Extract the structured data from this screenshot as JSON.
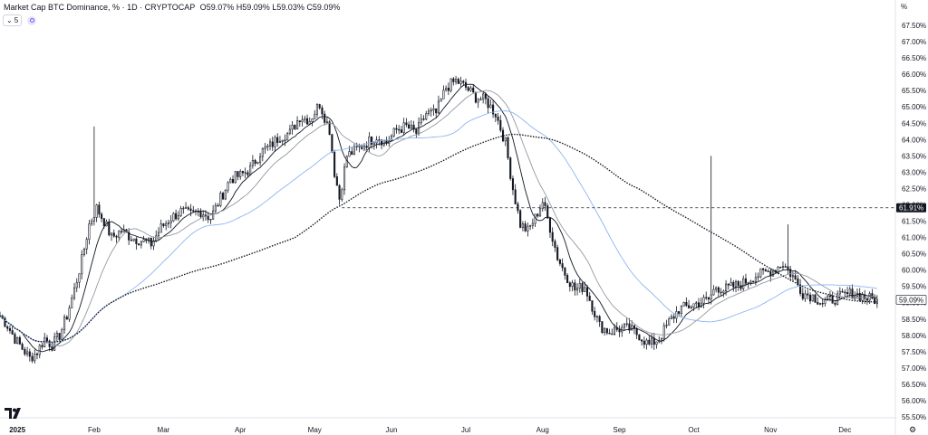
{
  "header": {
    "title": "Market Cap BTC Dominance, %",
    "interval": "1D",
    "source": "CRYPTOCAP",
    "open_label": "O",
    "open": "59.07%",
    "high_label": "H",
    "high": "59.09%",
    "low_label": "L",
    "low": "59.03%",
    "close_label": "C",
    "close": "59.09%"
  },
  "toolbar": {
    "collapse_label": "5"
  },
  "axis": {
    "unit": "%"
  },
  "colors": {
    "candle": "#131722",
    "ma_fast": "#131722",
    "ma_mid": "#9598a1",
    "ma_slow": "#8fb5f0",
    "ma_long": "#131722",
    "last_price_label_bg": "#ffffff",
    "level_label_bg": "#131722"
  },
  "chart_data": {
    "type": "candlestick",
    "title": "Market Cap BTC Dominance, %",
    "ylim": [
      55.5,
      68.0
    ],
    "y_ticks": [
      "55.50%",
      "56.00%",
      "56.50%",
      "57.00%",
      "57.50%",
      "58.00%",
      "58.50%",
      "59.00%",
      "59.50%",
      "60.00%",
      "60.50%",
      "61.00%",
      "61.50%",
      "62.00%",
      "62.50%",
      "63.00%",
      "63.50%",
      "64.00%",
      "64.50%",
      "65.00%",
      "65.50%",
      "66.00%",
      "66.50%",
      "67.00%",
      "67.50%"
    ],
    "x_ticks": [
      "2025",
      "Feb",
      "Mar",
      "Apr",
      "May",
      "Jun",
      "Jul",
      "Aug",
      "Sep",
      "Oct",
      "Nov",
      "Dec"
    ],
    "x_start": "2024-12-25",
    "x_end": "2025-12-21",
    "close_anchors": [
      [
        "2024-12-25",
        58.6
      ],
      [
        "2024-12-28",
        58.3
      ],
      [
        "2024-12-31",
        57.9
      ],
      [
        "2025-01-03",
        57.6
      ],
      [
        "2025-01-06",
        57.3
      ],
      [
        "2025-01-09",
        57.5
      ],
      [
        "2025-01-12",
        57.9
      ],
      [
        "2025-01-15",
        57.7
      ],
      [
        "2025-01-18",
        58.0
      ],
      [
        "2025-01-21",
        58.6
      ],
      [
        "2025-01-24",
        59.4
      ],
      [
        "2025-01-27",
        60.3
      ],
      [
        "2025-01-30",
        61.4
      ],
      [
        "2025-02-02",
        61.9
      ],
      [
        "2025-02-05",
        61.5
      ],
      [
        "2025-02-08",
        61.0
      ],
      [
        "2025-02-12",
        61.2
      ],
      [
        "2025-02-16",
        61.0
      ],
      [
        "2025-02-20",
        60.9
      ],
      [
        "2025-02-24",
        60.8
      ],
      [
        "2025-02-28",
        61.3
      ],
      [
        "2025-03-04",
        61.6
      ],
      [
        "2025-03-08",
        61.8
      ],
      [
        "2025-03-12",
        61.7
      ],
      [
        "2025-03-16",
        61.8
      ],
      [
        "2025-03-20",
        61.6
      ],
      [
        "2025-03-24",
        62.2
      ],
      [
        "2025-03-28",
        62.8
      ],
      [
        "2025-04-01",
        62.9
      ],
      [
        "2025-04-05",
        63.1
      ],
      [
        "2025-04-09",
        63.6
      ],
      [
        "2025-04-13",
        63.8
      ],
      [
        "2025-04-17",
        64.1
      ],
      [
        "2025-04-21",
        64.2
      ],
      [
        "2025-04-25",
        64.7
      ],
      [
        "2025-04-29",
        64.6
      ],
      [
        "2025-05-03",
        65.1
      ],
      [
        "2025-05-07",
        64.3
      ],
      [
        "2025-05-09",
        63.0
      ],
      [
        "2025-05-11",
        62.2
      ],
      [
        "2025-05-14",
        63.5
      ],
      [
        "2025-05-18",
        63.7
      ],
      [
        "2025-05-22",
        63.9
      ],
      [
        "2025-05-26",
        64.1
      ],
      [
        "2025-05-30",
        63.9
      ],
      [
        "2025-06-03",
        64.3
      ],
      [
        "2025-06-07",
        64.4
      ],
      [
        "2025-06-11",
        64.2
      ],
      [
        "2025-06-15",
        64.8
      ],
      [
        "2025-06-19",
        64.8
      ],
      [
        "2025-06-23",
        65.6
      ],
      [
        "2025-06-27",
        65.8
      ],
      [
        "2025-07-01",
        65.6
      ],
      [
        "2025-07-05",
        65.3
      ],
      [
        "2025-07-09",
        65.2
      ],
      [
        "2025-07-13",
        64.8
      ],
      [
        "2025-07-17",
        63.9
      ],
      [
        "2025-07-20",
        62.5
      ],
      [
        "2025-07-23",
        61.4
      ],
      [
        "2025-07-26",
        61.2
      ],
      [
        "2025-07-29",
        61.6
      ],
      [
        "2025-08-01",
        62.1
      ],
      [
        "2025-08-04",
        61.3
      ],
      [
        "2025-08-07",
        60.4
      ],
      [
        "2025-08-10",
        59.9
      ],
      [
        "2025-08-14",
        59.4
      ],
      [
        "2025-08-18",
        59.5
      ],
      [
        "2025-08-21",
        58.9
      ],
      [
        "2025-08-24",
        58.3
      ],
      [
        "2025-08-28",
        58.1
      ],
      [
        "2025-09-01",
        58.2
      ],
      [
        "2025-09-05",
        58.2
      ],
      [
        "2025-09-09",
        58.0
      ],
      [
        "2025-09-13",
        57.7
      ],
      [
        "2025-09-17",
        57.9
      ],
      [
        "2025-09-21",
        58.4
      ],
      [
        "2025-09-25",
        58.8
      ],
      [
        "2025-09-29",
        58.9
      ],
      [
        "2025-10-03",
        59.0
      ],
      [
        "2025-10-07",
        59.1
      ],
      [
        "2025-10-10",
        59.5
      ],
      [
        "2025-10-13",
        59.4
      ],
      [
        "2025-10-17",
        59.5
      ],
      [
        "2025-10-21",
        59.6
      ],
      [
        "2025-10-25",
        59.8
      ],
      [
        "2025-10-29",
        59.9
      ],
      [
        "2025-11-02",
        60.0
      ],
      [
        "2025-11-06",
        60.2
      ],
      [
        "2025-11-10",
        59.8
      ],
      [
        "2025-11-14",
        59.3
      ],
      [
        "2025-11-18",
        59.2
      ],
      [
        "2025-11-22",
        59.0
      ],
      [
        "2025-11-26",
        59.1
      ],
      [
        "2025-11-30",
        59.2
      ],
      [
        "2025-12-04",
        59.3
      ],
      [
        "2025-12-08",
        59.2
      ],
      [
        "2025-12-12",
        59.1
      ],
      [
        "2025-12-14",
        59.09
      ]
    ],
    "wick_spikes": [
      [
        "2025-02-01",
        64.4
      ],
      [
        "2025-10-08",
        63.5
      ],
      [
        "2025-11-08",
        61.4
      ]
    ],
    "series": [
      {
        "type": "ma",
        "values_note": "",
        "color_key": "ma_fast"
      },
      {
        "type": "ma",
        "color_key": "ma_mid"
      },
      {
        "type": "ma",
        "color_key": "ma_slow"
      },
      {
        "type": "ma",
        "color_key": "ma_long"
      }
    ],
    "horizontal_level": {
      "value": 61.91,
      "label": "61.91%",
      "from": "2025-05-12"
    },
    "last_price": {
      "value": 59.09,
      "label": "59.09%"
    }
  }
}
